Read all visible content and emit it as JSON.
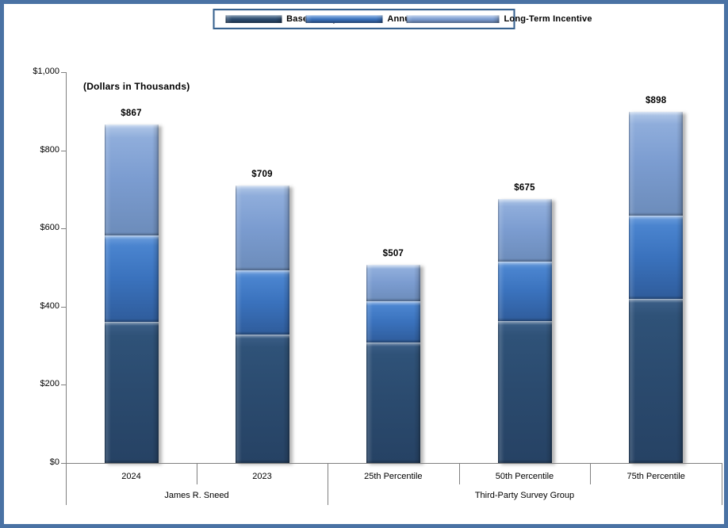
{
  "window": {
    "background": "#ffffff",
    "frame_border_color": "#4a72a4"
  },
  "legend": {
    "border_color": "#36618e",
    "position": "top-center",
    "items": [
      {
        "label": "Base Salary",
        "icon": "square-swatch-icon",
        "color": "#2b4b6f"
      },
      {
        "label": "Annual Incentive",
        "icon": "square-swatch-icon",
        "color": "#3b74c0"
      },
      {
        "label": "Long-Term Incentive",
        "icon": "square-swatch-icon",
        "color": "#7b9cd0"
      }
    ]
  },
  "annotation": "(Dollars in Thousands)",
  "chart_data": {
    "type": "bar",
    "stacked": true,
    "title": "",
    "categories": [
      "2024",
      "2023",
      "25th Percentile",
      "50th Percentile",
      "75th Percentile"
    ],
    "groups": [
      {
        "label": "James R. Sneed",
        "category_indices": [
          0,
          1
        ]
      },
      {
        "label": "Third-Party Survey Group",
        "category_indices": [
          2,
          3,
          4
        ]
      }
    ],
    "series": [
      {
        "name": "Base Salary",
        "color": "#2b4b6f",
        "values": [
          361,
          329,
          308,
          363,
          420
        ]
      },
      {
        "name": "Annual Incentive",
        "color": "#3b74c0",
        "values": [
          221,
          164,
          106,
          152,
          213
        ]
      },
      {
        "name": "Long-Term Incentive",
        "color": "#7b9cd0",
        "values": [
          285,
          216,
          93,
          160,
          265
        ]
      }
    ],
    "totals": [
      867,
      709,
      507,
      675,
      898
    ],
    "total_labels": [
      "$867",
      "$709",
      "$507",
      "$675",
      "$898"
    ],
    "ylim": [
      0,
      1000
    ],
    "ytick_interval": 200,
    "ytick_labels": [
      "$0",
      "$200",
      "$400",
      "$600",
      "$800",
      "$1,000"
    ],
    "grid": false,
    "legend_position": "top",
    "axis_note": "(Dollars in Thousands)"
  }
}
